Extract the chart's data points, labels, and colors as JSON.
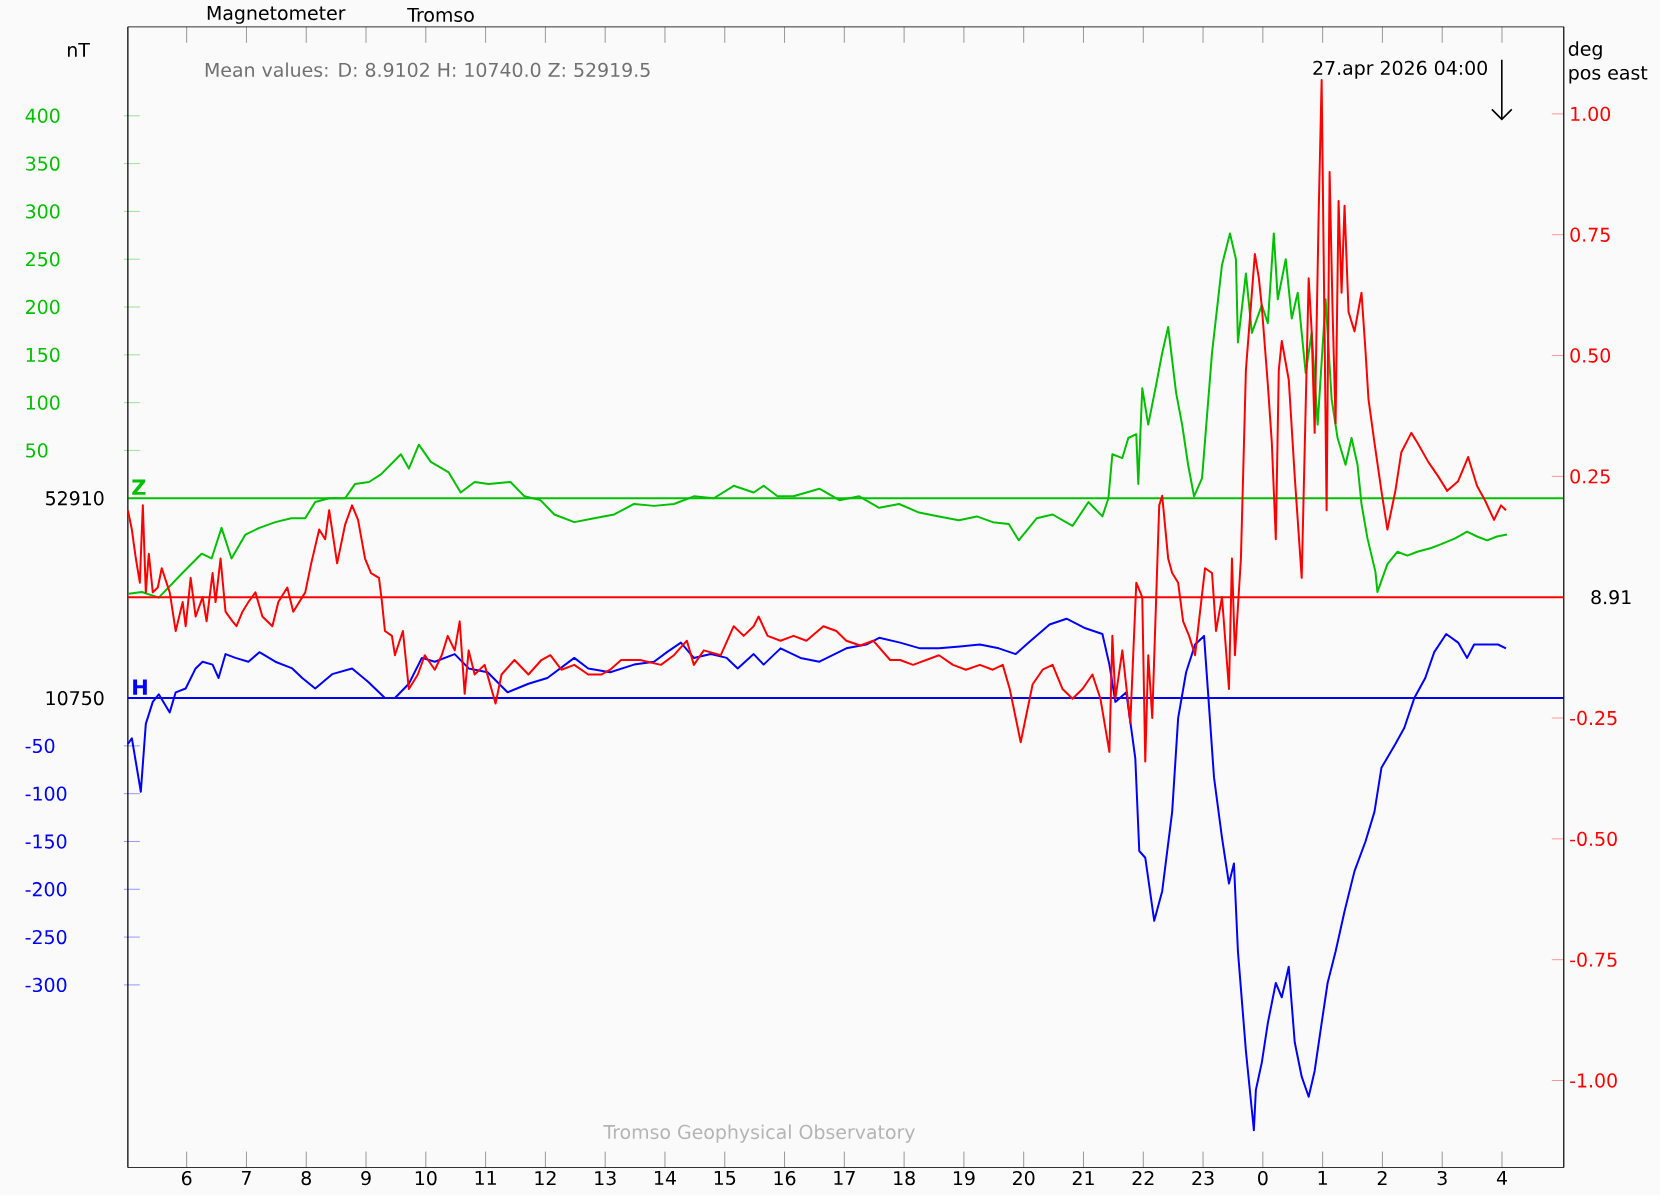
{
  "chart_data": {
    "type": "line",
    "title": "Magnetometer",
    "subtitle": "Tromso",
    "ylabel": "nT",
    "y2label": "deg pos east",
    "annotations": [
      "Mean values: D: 8.9102 H: 10740.0 Z: 52919.5",
      "27.apr 2026 04:00",
      "Tromso Geophysical Observatory",
      "52910",
      "8.91",
      "10750"
    ],
    "xlim": [
      "2026-04-26T05:01",
      "2026-04-27T05:02"
    ],
    "xticks": [
      {
        "value": "2026-04-26T06:00",
        "label": "6"
      },
      {
        "value": "2026-04-26T07:00",
        "label": "7"
      },
      {
        "value": "2026-04-26T08:00",
        "label": "8"
      },
      {
        "value": "2026-04-26T09:00",
        "label": "9"
      },
      {
        "value": "2026-04-26T10:00",
        "label": "10"
      },
      {
        "value": "2026-04-26T11:00",
        "label": "11"
      },
      {
        "value": "2026-04-26T12:00",
        "label": "12"
      },
      {
        "value": "2026-04-26T13:00",
        "label": "13"
      },
      {
        "value": "2026-04-26T14:00",
        "label": "14"
      },
      {
        "value": "2026-04-26T15:00",
        "label": "15"
      },
      {
        "value": "2026-04-26T16:00",
        "label": "16"
      },
      {
        "value": "2026-04-26T17:00",
        "label": "17"
      },
      {
        "value": "2026-04-26T18:00",
        "label": "18"
      },
      {
        "value": "2026-04-26T19:00",
        "label": "19"
      },
      {
        "value": "2026-04-26T20:00",
        "label": "20"
      },
      {
        "value": "2026-04-26T21:00",
        "label": "21"
      },
      {
        "value": "2026-04-26T22:00",
        "label": "22"
      },
      {
        "value": "2026-04-26T23:00",
        "label": "23"
      },
      {
        "value": "2026-04-27T00:00",
        "label": "0"
      },
      {
        "value": "2026-04-27T01:00",
        "label": "1"
      },
      {
        "value": "2026-04-27T02:00",
        "label": "2"
      },
      {
        "value": "2026-04-27T03:00",
        "label": "3"
      },
      {
        "value": "2026-04-27T04:00",
        "label": "4"
      }
    ],
    "ylim": [
      -700,
      493
    ],
    "yticks": [
      50,
      100,
      150,
      200,
      250,
      300,
      350,
      400
    ],
    "y3lim": [
      -491,
      702
    ],
    "y3ticks": [
      -50,
      -100,
      -150,
      -200,
      -250,
      -300
    ],
    "y2lim": [
      -1.18,
      1.18
    ],
    "y2ticks": [
      {
        "value": -1,
        "label": "-1.00"
      },
      -0.75,
      {
        "value": -0.5,
        "label": "-0.50"
      },
      -0.25,
      0.25,
      {
        "value": 0.5,
        "label": "0.50"
      },
      0.75,
      {
        "value": 1,
        "label": "1.00"
      }
    ],
    "ref_lines": [
      {
        "axis": "y",
        "value": 0,
        "color": "#00c000"
      },
      {
        "axis": "y2",
        "value": 0,
        "color": "#ff0000"
      },
      {
        "axis": "y3",
        "value": 0,
        "color": "#0000ff"
      }
    ],
    "series": [
      {
        "name": "Z",
        "color": "#00c000",
        "x": [
          "2026-04-26T05:02",
          "2026-04-26T05:15",
          "2026-04-26T05:32",
          "2026-04-26T05:55",
          "2026-04-26T06:15",
          "2026-04-26T06:25",
          "2026-04-26T06:35",
          "2026-04-26T06:45",
          "2026-04-26T06:59",
          "2026-04-26T07:13",
          "2026-04-26T07:29",
          "2026-04-26T07:45",
          "2026-04-26T07:59",
          "2026-04-26T08:09",
          "2026-04-26T08:23",
          "2026-04-26T08:39",
          "2026-04-26T08:49",
          "2026-04-26T09:03",
          "2026-04-26T09:15",
          "2026-04-26T09:35",
          "2026-04-26T09:43",
          "2026-04-26T09:53",
          "2026-04-26T10:05",
          "2026-04-26T10:23",
          "2026-04-26T10:35",
          "2026-04-26T10:49",
          "2026-04-26T11:03",
          "2026-04-26T11:25",
          "2026-04-26T11:39",
          "2026-04-26T11:55",
          "2026-04-26T12:09",
          "2026-04-26T12:29",
          "2026-04-26T12:49",
          "2026-04-26T13:09",
          "2026-04-26T13:29",
          "2026-04-26T13:49",
          "2026-04-26T14:09",
          "2026-04-26T14:29",
          "2026-04-26T14:49",
          "2026-04-26T15:09",
          "2026-04-26T15:29",
          "2026-04-26T15:39",
          "2026-04-26T15:53",
          "2026-04-26T16:09",
          "2026-04-26T16:35",
          "2026-04-26T16:55",
          "2026-04-26T17:15",
          "2026-04-26T17:35",
          "2026-04-26T17:55",
          "2026-04-26T18:15",
          "2026-04-26T18:35",
          "2026-04-26T18:55",
          "2026-04-26T19:13",
          "2026-04-26T19:29",
          "2026-04-26T19:45",
          "2026-04-26T19:55",
          "2026-04-26T20:13",
          "2026-04-26T20:29",
          "2026-04-26T20:49",
          "2026-04-26T21:05",
          "2026-04-26T21:19",
          "2026-04-26T21:25",
          "2026-04-26T21:29",
          "2026-04-26T21:39",
          "2026-04-26T21:45",
          "2026-04-26T21:53",
          "2026-04-26T21:55",
          "2026-04-26T21:59",
          "2026-04-26T22:05",
          "2026-04-26T22:13",
          "2026-04-26T22:19",
          "2026-04-26T22:25",
          "2026-04-26T22:33",
          "2026-04-26T22:39",
          "2026-04-26T22:45",
          "2026-04-26T22:51",
          "2026-04-26T22:59",
          "2026-04-26T23:09",
          "2026-04-26T23:19",
          "2026-04-26T23:27",
          "2026-04-26T23:33",
          "2026-04-26T23:35",
          "2026-04-26T23:43",
          "2026-04-26T23:49",
          "2026-04-26T23:59",
          "2026-04-27T00:05",
          "2026-04-27T00:11",
          "2026-04-27T00:15",
          "2026-04-27T00:23",
          "2026-04-27T00:29",
          "2026-04-27T00:35",
          "2026-04-27T00:43",
          "2026-04-27T00:49",
          "2026-04-27T00:55",
          "2026-04-27T01:03",
          "2026-04-27T01:09",
          "2026-04-27T01:15",
          "2026-04-27T01:23",
          "2026-04-27T01:29",
          "2026-04-27T01:35",
          "2026-04-27T01:39",
          "2026-04-27T01:45",
          "2026-04-27T01:53",
          "2026-04-27T01:55",
          "2026-04-27T02:05",
          "2026-04-27T02:15",
          "2026-04-27T02:25",
          "2026-04-27T02:35",
          "2026-04-27T02:49",
          "2026-04-27T02:59",
          "2026-04-27T03:13",
          "2026-04-27T03:25",
          "2026-04-27T03:35",
          "2026-04-27T03:45",
          "2026-04-27T03:55",
          "2026-04-27T04:05"
        ],
        "values": [
          -100,
          -98,
          -104,
          -79,
          -58,
          -63,
          -31,
          -63,
          -38,
          -31,
          -25,
          -21,
          -21,
          -4,
          0,
          0,
          15,
          17,
          25,
          46,
          31,
          56,
          38,
          27,
          6,
          17,
          15,
          17,
          2,
          -2,
          -17,
          -25,
          -21,
          -17,
          -6,
          -8,
          -6,
          2,
          0,
          13,
          6,
          13,
          2,
          2,
          10,
          -2,
          2,
          -10,
          -6,
          -15,
          -19,
          -23,
          -19,
          -25,
          -27,
          -44,
          -21,
          -17,
          -29,
          -4,
          -19,
          0,
          46,
          42,
          63,
          67,
          15,
          115,
          77,
          119,
          152,
          179,
          110,
          77,
          35,
          2,
          21,
          152,
          244,
          277,
          250,
          163,
          235,
          173,
          202,
          183,
          277,
          208,
          250,
          188,
          215,
          131,
          173,
          77,
          208,
          104,
          63,
          35,
          63,
          35,
          -6,
          -42,
          -77,
          -98,
          -69,
          -56,
          -60,
          -56,
          -52,
          -48,
          -42,
          -35,
          -40,
          -44,
          -40,
          -38
        ]
      },
      {
        "name": "H",
        "color": "#0000ff",
        "axis": "y3",
        "x": [
          "2026-04-26T05:01",
          "2026-04-26T05:05",
          "2026-04-26T05:14",
          "2026-04-26T05:19",
          "2026-04-26T05:26",
          "2026-04-26T05:32",
          "2026-04-26T05:43",
          "2026-04-26T05:49",
          "2026-04-26T05:59",
          "2026-04-26T06:09",
          "2026-04-26T06:16",
          "2026-04-26T06:26",
          "2026-04-26T06:32",
          "2026-04-26T06:39",
          "2026-04-26T06:49",
          "2026-04-26T07:02",
          "2026-04-26T07:13",
          "2026-04-26T07:29",
          "2026-04-26T07:46",
          "2026-04-26T07:56",
          "2026-04-26T08:09",
          "2026-04-26T08:26",
          "2026-04-26T08:46",
          "2026-04-26T09:02",
          "2026-04-26T09:19",
          "2026-04-26T09:29",
          "2026-04-26T09:43",
          "2026-04-26T09:56",
          "2026-04-26T10:09",
          "2026-04-26T10:29",
          "2026-04-26T10:43",
          "2026-04-26T11:02",
          "2026-04-26T11:22",
          "2026-04-26T11:43",
          "2026-04-26T12:02",
          "2026-04-26T12:29",
          "2026-04-26T12:43",
          "2026-04-26T13:05",
          "2026-04-26T13:29",
          "2026-04-26T13:49",
          "2026-04-26T14:02",
          "2026-04-26T14:16",
          "2026-04-26T14:29",
          "2026-04-26T14:46",
          "2026-04-26T15:02",
          "2026-04-26T15:13",
          "2026-04-26T15:29",
          "2026-04-26T15:39",
          "2026-04-26T15:56",
          "2026-04-26T16:16",
          "2026-04-26T16:35",
          "2026-04-26T17:02",
          "2026-04-26T17:22",
          "2026-04-26T17:35",
          "2026-04-26T17:56",
          "2026-04-26T18:16",
          "2026-04-26T18:35",
          "2026-04-26T18:56",
          "2026-04-26T19:16",
          "2026-04-26T19:35",
          "2026-04-26T19:52",
          "2026-04-26T20:05",
          "2026-04-26T20:26",
          "2026-04-26T20:43",
          "2026-04-26T21:02",
          "2026-04-26T21:19",
          "2026-04-26T21:26",
          "2026-04-26T21:32",
          "2026-04-26T21:43",
          "2026-04-26T21:52",
          "2026-04-26T21:56",
          "2026-04-26T22:02",
          "2026-04-26T22:11",
          "2026-04-26T22:19",
          "2026-04-26T22:29",
          "2026-04-26T22:35",
          "2026-04-26T22:43",
          "2026-04-26T22:52",
          "2026-04-26T23:01",
          "2026-04-26T23:05",
          "2026-04-26T23:11",
          "2026-04-26T23:19",
          "2026-04-26T23:26",
          "2026-04-26T23:31",
          "2026-04-26T23:35",
          "2026-04-26T23:43",
          "2026-04-26T23:51",
          "2026-04-26T23:53",
          "2026-04-26T23:59",
          "2026-04-27T00:05",
          "2026-04-27T00:13",
          "2026-04-27T00:19",
          "2026-04-27T00:26",
          "2026-04-27T00:32",
          "2026-04-27T00:39",
          "2026-04-27T00:46",
          "2026-04-27T00:52",
          "2026-04-27T00:59",
          "2026-04-27T01:05",
          "2026-04-27T01:13",
          "2026-04-27T01:22",
          "2026-04-27T01:32",
          "2026-04-27T01:43",
          "2026-04-27T01:52",
          "2026-04-27T01:59",
          "2026-04-27T02:13",
          "2026-04-27T02:22",
          "2026-04-27T02:32",
          "2026-04-27T02:43",
          "2026-04-27T02:52",
          "2026-04-27T03:04",
          "2026-04-27T03:16",
          "2026-04-27T03:25",
          "2026-04-27T03:32",
          "2026-04-27T03:46",
          "2026-04-27T03:56",
          "2026-04-27T04:04"
        ],
        "values": [
          -48,
          -42,
          -98,
          -27,
          -4,
          4,
          -15,
          6,
          10,
          31,
          38,
          35,
          21,
          46,
          42,
          38,
          48,
          38,
          31,
          21,
          10,
          25,
          31,
          17,
          0,
          0,
          15,
          42,
          38,
          46,
          31,
          27,
          6,
          15,
          21,
          42,
          31,
          27,
          35,
          38,
          48,
          58,
          42,
          46,
          42,
          31,
          46,
          35,
          52,
          42,
          38,
          52,
          56,
          63,
          58,
          52,
          52,
          54,
          56,
          52,
          46,
          58,
          77,
          83,
          73,
          67,
          35,
          -4,
          6,
          -63,
          -160,
          -167,
          -233,
          -202,
          -119,
          -21,
          27,
          56,
          65,
          6,
          -83,
          -146,
          -194,
          -173,
          -265,
          -369,
          -452,
          -410,
          -381,
          -340,
          -298,
          -313,
          -281,
          -360,
          -396,
          -417,
          -390,
          -340,
          -298,
          -265,
          -223,
          -181,
          -150,
          -119,
          -73,
          -48,
          -31,
          0,
          21,
          48,
          67,
          58,
          42,
          56,
          56,
          56,
          52
        ]
      },
      {
        "color": "#ff0000",
        "axis": "y2",
        "x": [
          "2026-04-26T05:01",
          "2026-04-26T05:05",
          "2026-04-26T05:09",
          "2026-04-26T05:13",
          "2026-04-26T05:16",
          "2026-04-26T05:19",
          "2026-04-26T05:22",
          "2026-04-26T05:26",
          "2026-04-26T05:31",
          "2026-04-26T05:35",
          "2026-04-26T05:43",
          "2026-04-26T05:49",
          "2026-04-26T05:56",
          "2026-04-26T05:59",
          "2026-04-26T06:04",
          "2026-04-26T06:09",
          "2026-04-26T06:16",
          "2026-04-26T06:20",
          "2026-04-26T06:26",
          "2026-04-26T06:29",
          "2026-04-26T06:34",
          "2026-04-26T06:39",
          "2026-04-26T06:46",
          "2026-04-26T06:50",
          "2026-04-26T06:56",
          "2026-04-26T07:02",
          "2026-04-26T07:09",
          "2026-04-26T07:16",
          "2026-04-26T07:26",
          "2026-04-26T07:32",
          "2026-04-26T07:41",
          "2026-04-26T07:47",
          "2026-04-26T07:59",
          "2026-04-26T08:05",
          "2026-04-26T08:13",
          "2026-04-26T08:19",
          "2026-04-26T08:23",
          "2026-04-26T08:31",
          "2026-04-26T08:39",
          "2026-04-26T08:46",
          "2026-04-26T08:52",
          "2026-04-26T08:59",
          "2026-04-26T09:05",
          "2026-04-26T09:13",
          "2026-04-26T09:16",
          "2026-04-26T09:19",
          "2026-04-26T09:26",
          "2026-04-26T09:29",
          "2026-04-26T09:37",
          "2026-04-26T09:43",
          "2026-04-26T09:52",
          "2026-04-26T09:59",
          "2026-04-26T10:09",
          "2026-04-26T10:16",
          "2026-04-26T10:22",
          "2026-04-26T10:29",
          "2026-04-26T10:34",
          "2026-04-26T10:39",
          "2026-04-26T10:43",
          "2026-04-26T10:49",
          "2026-04-26T10:59",
          "2026-04-26T11:10",
          "2026-04-26T11:16",
          "2026-04-26T11:29",
          "2026-04-26T11:43",
          "2026-04-26T11:56",
          "2026-04-26T12:05",
          "2026-04-26T12:16",
          "2026-04-26T12:29",
          "2026-04-26T12:43",
          "2026-04-26T12:56",
          "2026-04-26T13:05",
          "2026-04-26T13:16",
          "2026-04-26T13:35",
          "2026-04-26T13:56",
          "2026-04-26T14:09",
          "2026-04-26T14:22",
          "2026-04-26T14:29",
          "2026-04-26T14:39",
          "2026-04-26T14:56",
          "2026-04-26T15:09",
          "2026-04-26T15:19",
          "2026-04-26T15:29",
          "2026-04-26T15:34",
          "2026-04-26T15:43",
          "2026-04-26T15:56",
          "2026-04-26T16:09",
          "2026-04-26T16:22",
          "2026-04-26T16:39",
          "2026-04-26T16:52",
          "2026-04-26T17:02",
          "2026-04-26T17:16",
          "2026-04-26T17:29",
          "2026-04-26T17:46",
          "2026-04-26T17:56",
          "2026-04-26T18:09",
          "2026-04-26T18:22",
          "2026-04-26T18:35",
          "2026-04-26T18:49",
          "2026-04-26T19:02",
          "2026-04-26T19:16",
          "2026-04-26T19:29",
          "2026-04-26T19:39",
          "2026-04-26T19:46",
          "2026-04-26T19:52",
          "2026-04-26T19:57",
          "2026-04-26T20:02",
          "2026-04-26T20:09",
          "2026-04-26T20:19",
          "2026-04-26T20:29",
          "2026-04-26T20:39",
          "2026-04-26T20:49",
          "2026-04-26T20:59",
          "2026-04-26T21:09",
          "2026-04-26T21:17",
          "2026-04-26T21:26",
          "2026-04-26T21:29",
          "2026-04-26T21:32",
          "2026-04-26T21:39",
          "2026-04-26T21:47",
          "2026-04-26T21:53",
          "2026-04-26T21:59",
          "2026-04-26T22:02",
          "2026-04-26T22:05",
          "2026-04-26T22:09",
          "2026-04-26T22:16",
          "2026-04-26T22:19",
          "2026-04-26T22:25",
          "2026-04-26T22:29",
          "2026-04-26T22:35",
          "2026-04-26T22:40",
          "2026-04-26T22:46",
          "2026-04-26T22:52",
          "2026-04-26T23:02",
          "2026-04-26T23:09",
          "2026-04-26T23:13",
          "2026-04-26T23:19",
          "2026-04-26T23:26",
          "2026-04-26T23:29",
          "2026-04-26T23:32",
          "2026-04-26T23:38",
          "2026-04-26T23:43",
          "2026-04-26T23:46",
          "2026-04-26T23:52",
          "2026-04-26T23:56",
          "2026-04-26T23:59",
          "2026-04-27T00:05",
          "2026-04-27T00:09",
          "2026-04-27T00:13",
          "2026-04-27T00:16",
          "2026-04-27T00:19",
          "2026-04-27T00:26",
          "2026-04-27T00:32",
          "2026-04-27T00:39",
          "2026-04-27T00:46",
          "2026-04-27T00:49",
          "2026-04-27T00:52",
          "2026-04-27T00:56",
          "2026-04-27T00:59",
          "2026-04-27T01:04",
          "2026-04-27T01:07",
          "2026-04-27T01:10",
          "2026-04-27T01:13",
          "2026-04-27T01:16",
          "2026-04-27T01:19",
          "2026-04-27T01:22",
          "2026-04-27T01:26",
          "2026-04-27T01:32",
          "2026-04-27T01:39",
          "2026-04-27T01:43",
          "2026-04-27T01:46",
          "2026-04-27T01:52",
          "2026-04-27T01:59",
          "2026-04-27T02:05",
          "2026-04-27T02:13",
          "2026-04-27T02:19",
          "2026-04-27T02:29",
          "2026-04-27T02:35",
          "2026-04-27T02:46",
          "2026-04-27T02:56",
          "2026-04-27T03:05",
          "2026-04-27T03:16",
          "2026-04-27T03:26",
          "2026-04-27T03:35",
          "2026-04-27T03:43",
          "2026-04-27T03:52",
          "2026-04-27T03:59",
          "2026-04-27T04:04"
        ],
        "values": [
          0.18,
          0.14,
          0.08,
          0.03,
          0.19,
          0.01,
          0.09,
          0.01,
          0.02,
          0.06,
          0.01,
          -0.07,
          -0.01,
          -0.06,
          0.04,
          -0.04,
          0,
          -0.05,
          0.05,
          -0.01,
          0.08,
          -0.03,
          -0.05,
          -0.06,
          -0.03,
          -0.01,
          0.01,
          -0.04,
          -0.06,
          -0.01,
          0.02,
          -0.03,
          0.01,
          0.07,
          0.14,
          0.12,
          0.18,
          0.07,
          0.15,
          0.19,
          0.16,
          0.08,
          0.05,
          0.04,
          -0.01,
          -0.07,
          -0.08,
          -0.12,
          -0.07,
          -0.19,
          -0.16,
          -0.12,
          -0.15,
          -0.12,
          -0.08,
          -0.11,
          -0.05,
          -0.2,
          -0.11,
          -0.16,
          -0.14,
          -0.22,
          -0.16,
          -0.13,
          -0.16,
          -0.13,
          -0.12,
          -0.15,
          -0.14,
          -0.16,
          -0.16,
          -0.15,
          -0.13,
          -0.13,
          -0.14,
          -0.12,
          -0.09,
          -0.14,
          -0.11,
          -0.12,
          -0.06,
          -0.08,
          -0.06,
          -0.04,
          -0.08,
          -0.09,
          -0.08,
          -0.09,
          -0.06,
          -0.07,
          -0.09,
          -0.1,
          -0.09,
          -0.13,
          -0.13,
          -0.14,
          -0.13,
          -0.12,
          -0.14,
          -0.15,
          -0.14,
          -0.15,
          -0.14,
          -0.19,
          -0.25,
          -0.3,
          -0.25,
          -0.18,
          -0.15,
          -0.14,
          -0.19,
          -0.21,
          -0.19,
          -0.16,
          -0.21,
          -0.32,
          -0.08,
          -0.21,
          -0.11,
          -0.26,
          0.03,
          0,
          -0.34,
          -0.12,
          -0.25,
          0.19,
          0.21,
          0.08,
          0.05,
          0.03,
          -0.05,
          -0.08,
          -0.12,
          0.06,
          0.05,
          -0.07,
          0,
          -0.19,
          0.08,
          -0.12,
          0.08,
          0.47,
          0.55,
          0.71,
          0.66,
          0.6,
          0.44,
          0.32,
          0.12,
          0.47,
          0.53,
          0.45,
          0.25,
          0.04,
          0.66,
          0.55,
          0.34,
          0.79,
          1.07,
          0.18,
          0.88,
          0.59,
          0.36,
          0.82,
          0.63,
          0.81,
          0.59,
          0.55,
          0.63,
          0.51,
          0.41,
          0.32,
          0.22,
          0.14,
          0.22,
          0.3,
          0.34,
          0.32,
          0.28,
          0.25,
          0.22,
          0.24,
          0.29,
          0.23,
          0.2,
          0.16,
          0.19,
          0.18
        ]
      }
    ]
  }
}
